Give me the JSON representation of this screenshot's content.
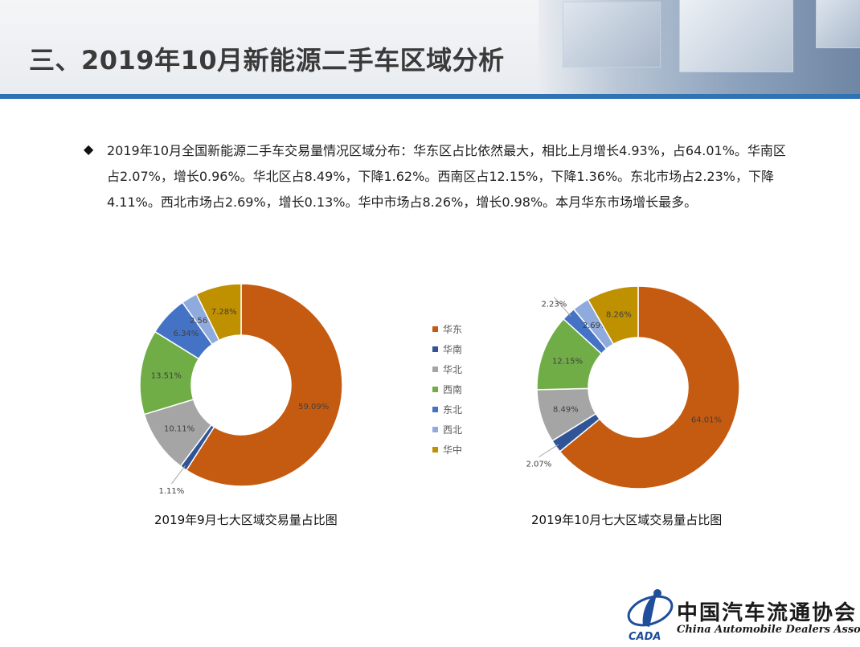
{
  "title": "三、2019年10月新能源二手车区域分析",
  "summary": "2019年10月全国新能源二手车交易量情况区域分布：华东区占比依然最大，相比上月增长4.93%，占64.01%。华南区占2.07%，增长0.96%。华北区占8.49%，下降1.62%。西南区占12.15%，下降1.36%。东北市场占2.23%，下降4.11%。西北市场占2.69%，增长0.13%。华中市场占8.26%，增长0.98%。本月华东市场增长最多。",
  "colors": {
    "accent_bar": "#2e74b5",
    "华东": "#c55a11",
    "华南": "#2f5597",
    "华北": "#a5a5a5",
    "西南": "#70ad47",
    "东北": "#4472c4",
    "西北": "#8faadc",
    "华中": "#bf9000"
  },
  "icons": {
    "bullet": "diamond-bullet-icon",
    "logo": "cada-logo-icon"
  },
  "chart_data": [
    {
      "type": "pie",
      "title": "2019年9月七大区域交易量占比图",
      "categories": [
        "华东",
        "华南",
        "华北",
        "西南",
        "东北",
        "西北",
        "华中"
      ],
      "values": [
        59.09,
        1.11,
        10.11,
        13.51,
        6.34,
        2.56,
        7.28
      ],
      "labels": [
        "59.09%",
        "1.11%",
        "10.11%",
        "13.51%",
        "6.34%",
        "2.56%",
        "7.28%"
      ],
      "donut": true
    },
    {
      "type": "pie",
      "title": "2019年10月七大区域交易量占比图",
      "categories": [
        "华东",
        "华南",
        "华北",
        "西南",
        "东北",
        "西北",
        "华中"
      ],
      "values": [
        64.01,
        2.07,
        8.49,
        12.15,
        2.23,
        2.69,
        8.26
      ],
      "labels": [
        "64.01%",
        "2.07%",
        "8.49%",
        "12.15%",
        "2.23%",
        "2.69%",
        "8.26%"
      ],
      "donut": true
    }
  ],
  "legend": [
    "华东",
    "华南",
    "华北",
    "西南",
    "东北",
    "西北",
    "华中"
  ],
  "logo": {
    "name_cn": "中国汽车流通协会",
    "name_en": "China Automobile Dealers Association",
    "abbr": "CADA"
  }
}
